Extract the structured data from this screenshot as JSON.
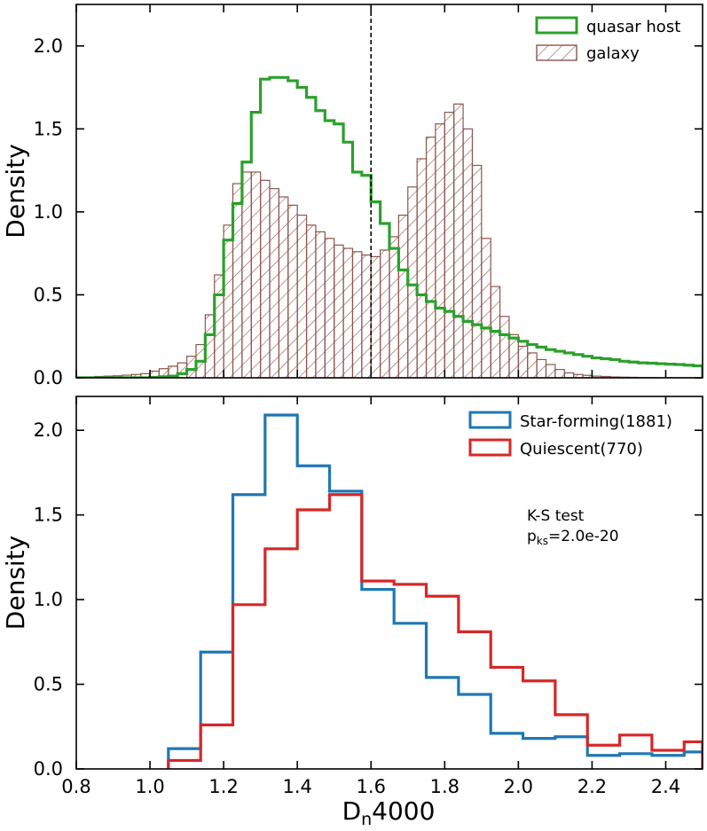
{
  "chart_data": [
    {
      "type": "histogram",
      "xlim": [
        0.8,
        2.5
      ],
      "ylim": [
        0.0,
        2.25
      ],
      "ylabel": "Density",
      "yticks": [
        0.0,
        0.5,
        1.0,
        1.5,
        2.0
      ],
      "ytick_labels": [
        "0.0",
        "0.5",
        "1.0",
        "1.5",
        "2.0"
      ],
      "xticks": [
        0.8,
        1.0,
        1.2,
        1.4,
        1.6,
        1.8,
        2.0,
        2.2,
        2.4
      ],
      "vline": {
        "x": 1.6,
        "style": "dashed",
        "color": "#000000"
      },
      "legend_position": "top-right",
      "bin_edges": [
        0.8,
        0.825,
        0.85,
        0.875,
        0.9,
        0.925,
        0.95,
        0.975,
        1.0,
        1.025,
        1.05,
        1.075,
        1.1,
        1.125,
        1.15,
        1.175,
        1.2,
        1.225,
        1.25,
        1.275,
        1.3,
        1.325,
        1.35,
        1.375,
        1.4,
        1.425,
        1.45,
        1.475,
        1.5,
        1.525,
        1.55,
        1.575,
        1.6,
        1.625,
        1.65,
        1.675,
        1.7,
        1.725,
        1.75,
        1.775,
        1.8,
        1.825,
        1.85,
        1.875,
        1.9,
        1.925,
        1.95,
        1.975,
        2.0,
        2.025,
        2.05,
        2.075,
        2.1,
        2.125,
        2.15,
        2.175,
        2.2,
        2.225,
        2.25,
        2.275,
        2.3,
        2.325,
        2.35,
        2.375,
        2.4,
        2.425,
        2.45,
        2.475,
        2.5
      ],
      "series": [
        {
          "name": "galaxy",
          "label": "galaxy",
          "style": "hatched",
          "color": "#8c564b",
          "values": [
            0.005,
            0.005,
            0.008,
            0.01,
            0.012,
            0.016,
            0.02,
            0.025,
            0.04,
            0.055,
            0.07,
            0.09,
            0.13,
            0.2,
            0.38,
            0.62,
            0.92,
            1.17,
            1.24,
            1.24,
            1.19,
            1.14,
            1.09,
            1.04,
            0.98,
            0.92,
            0.88,
            0.84,
            0.8,
            0.78,
            0.76,
            0.74,
            0.73,
            0.77,
            0.85,
            0.98,
            1.15,
            1.32,
            1.45,
            1.53,
            1.6,
            1.65,
            1.5,
            1.28,
            0.84,
            0.55,
            0.37,
            0.26,
            0.19,
            0.15,
            0.11,
            0.08,
            0.05,
            0.03,
            0.02,
            0.015,
            0.01,
            0.008,
            0.005,
            0.004,
            0.003,
            0.002,
            0.002,
            0.001,
            0.001,
            0.001,
            0.001,
            0.0
          ]
        },
        {
          "name": "quasar host",
          "label": "quasar host",
          "style": "step",
          "color": "#2ca02c",
          "values": [
            0.0,
            0.0,
            0.0,
            0.0,
            0.0,
            0.0,
            0.0,
            0.0,
            0.003,
            0.006,
            0.01,
            0.025,
            0.05,
            0.1,
            0.26,
            0.5,
            0.83,
            1.05,
            1.3,
            1.6,
            1.8,
            1.81,
            1.81,
            1.79,
            1.75,
            1.69,
            1.61,
            1.55,
            1.53,
            1.42,
            1.24,
            1.22,
            1.06,
            0.93,
            0.78,
            0.65,
            0.56,
            0.5,
            0.46,
            0.42,
            0.4,
            0.37,
            0.34,
            0.32,
            0.3,
            0.28,
            0.26,
            0.24,
            0.22,
            0.2,
            0.185,
            0.17,
            0.16,
            0.15,
            0.14,
            0.13,
            0.12,
            0.115,
            0.11,
            0.1,
            0.095,
            0.09,
            0.088,
            0.085,
            0.082,
            0.08,
            0.076,
            0.072
          ]
        }
      ]
    },
    {
      "type": "histogram",
      "xlim": [
        0.8,
        2.5
      ],
      "ylim": [
        0.0,
        2.2
      ],
      "xlabel_main": "D",
      "xlabel_sub": "n",
      "xlabel_rest": "4000",
      "ylabel": "Density",
      "xticks": [
        0.8,
        1.0,
        1.2,
        1.4,
        1.6,
        1.8,
        2.0,
        2.2,
        2.4
      ],
      "xtick_labels": [
        "0.8",
        "1.0",
        "1.2",
        "1.4",
        "1.6",
        "1.8",
        "2.0",
        "2.2",
        "2.4"
      ],
      "yticks": [
        0.0,
        0.5,
        1.0,
        1.5,
        2.0
      ],
      "ytick_labels": [
        "0.0",
        "0.5",
        "1.0",
        "1.5",
        "2.0"
      ],
      "legend_position": "top-right",
      "bin_edges": [
        1.05,
        1.1375,
        1.225,
        1.3125,
        1.4,
        1.4875,
        1.575,
        1.6625,
        1.75,
        1.8375,
        1.925,
        2.0125,
        2.1,
        2.1875,
        2.275,
        2.3625,
        2.45,
        2.5
      ],
      "series": [
        {
          "name": "Star-forming(1881)",
          "label": "Star-forming(1881)",
          "color": "#1f77b4",
          "values": [
            0.12,
            0.69,
            1.62,
            2.09,
            1.79,
            1.64,
            1.06,
            0.86,
            0.54,
            0.44,
            0.21,
            0.18,
            0.19,
            0.08,
            0.09,
            0.08,
            0.1
          ]
        },
        {
          "name": "Quiescent(770)",
          "label": "Quiescent(770)",
          "color": "#d62728",
          "values": [
            0.05,
            0.26,
            0.97,
            1.3,
            1.53,
            1.62,
            1.11,
            1.09,
            1.02,
            0.81,
            0.6,
            0.52,
            0.32,
            0.14,
            0.2,
            0.11,
            0.16
          ]
        }
      ],
      "annotation": {
        "line1": "K-S test",
        "line2_main": "p",
        "line2_sub": "ks",
        "line2_value": "=2.0e-20"
      }
    }
  ]
}
